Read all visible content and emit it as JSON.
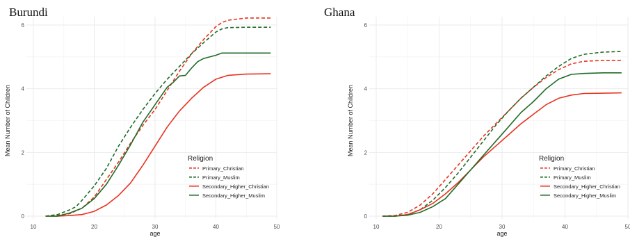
{
  "chart_data": [
    {
      "type": "line",
      "title": "Burundi",
      "xlabel": "age",
      "ylabel": "Mean Number of Children",
      "xlim": [
        10,
        50
      ],
      "ylim": [
        0,
        6
      ],
      "xticks": [
        10,
        20,
        30,
        40,
        50
      ],
      "yticks": [
        0,
        2,
        4,
        6
      ],
      "grid": true,
      "legend": {
        "title": "Religion",
        "placement": "bottom-right"
      },
      "series": [
        {
          "name": "Primary_Christian",
          "color": "#e8321f",
          "dash": "dashed",
          "x": [
            12,
            14,
            16,
            18,
            20,
            22,
            24,
            26,
            28,
            30,
            32,
            34,
            36,
            38,
            40,
            41,
            42,
            45,
            49
          ],
          "y": [
            0,
            0.02,
            0.08,
            0.25,
            0.6,
            1.15,
            1.7,
            2.3,
            2.85,
            3.35,
            3.95,
            4.55,
            5.1,
            5.55,
            5.95,
            6.08,
            6.15,
            6.22,
            6.22
          ]
        },
        {
          "name": "Primary_Muslim",
          "color": "#1e6b28",
          "dash": "dashed",
          "x": [
            12,
            14,
            16,
            17,
            18,
            20,
            22,
            24,
            25,
            26,
            28,
            30,
            32,
            34,
            36,
            38,
            40,
            41,
            42,
            45,
            49
          ],
          "y": [
            0,
            0.05,
            0.2,
            0.3,
            0.5,
            0.95,
            1.5,
            2.2,
            2.5,
            2.8,
            3.35,
            3.85,
            4.3,
            4.7,
            5.1,
            5.45,
            5.78,
            5.88,
            5.92,
            5.93,
            5.93
          ]
        },
        {
          "name": "Secondary_Higher_Christian",
          "color": "#e8321f",
          "dash": "solid",
          "x": [
            12,
            14,
            16,
            18,
            20,
            22,
            24,
            26,
            28,
            30,
            32,
            34,
            36,
            38,
            40,
            42,
            45,
            49
          ],
          "y": [
            0,
            0,
            0.02,
            0.05,
            0.15,
            0.35,
            0.65,
            1.05,
            1.6,
            2.2,
            2.8,
            3.3,
            3.7,
            4.05,
            4.3,
            4.42,
            4.46,
            4.47
          ]
        },
        {
          "name": "Secondary_Higher_Muslim",
          "color": "#1e6b28",
          "dash": "solid",
          "x": [
            12,
            14,
            16,
            18,
            20,
            22,
            24,
            26,
            28,
            30,
            32,
            33,
            34,
            35,
            36,
            37,
            38,
            40,
            41,
            42,
            45,
            49
          ],
          "y": [
            0,
            0,
            0.1,
            0.25,
            0.55,
            1.0,
            1.6,
            2.25,
            2.95,
            3.5,
            4.05,
            4.2,
            4.4,
            4.42,
            4.65,
            4.85,
            4.95,
            5.05,
            5.12,
            5.12,
            5.12,
            5.12
          ]
        }
      ]
    },
    {
      "type": "line",
      "title": "Ghana",
      "xlabel": "age",
      "ylabel": "Mean Number of Children",
      "xlim": [
        10,
        50
      ],
      "ylim": [
        0,
        6
      ],
      "xticks": [
        10,
        20,
        30,
        40,
        50
      ],
      "yticks": [
        0,
        2,
        4,
        6
      ],
      "grid": true,
      "legend": {
        "title": "Religion",
        "placement": "bottom-right"
      },
      "series": [
        {
          "name": "Primary_Christian",
          "color": "#e8321f",
          "dash": "dashed",
          "x": [
            11,
            13,
            15,
            17,
            19,
            21,
            23,
            25,
            27,
            29,
            31,
            33,
            35,
            37,
            39,
            41,
            43,
            46,
            49
          ],
          "y": [
            0,
            0.02,
            0.12,
            0.35,
            0.7,
            1.15,
            1.6,
            2.05,
            2.5,
            2.9,
            3.3,
            3.7,
            4.05,
            4.35,
            4.6,
            4.78,
            4.86,
            4.89,
            4.89
          ]
        },
        {
          "name": "Primary_Muslim",
          "color": "#1e6b28",
          "dash": "dashed",
          "x": [
            11,
            13,
            15,
            17,
            19,
            21,
            23,
            25,
            27,
            29,
            31,
            33,
            35,
            37,
            39,
            41,
            43,
            46,
            49
          ],
          "y": [
            0,
            0,
            0.05,
            0.2,
            0.5,
            0.9,
            1.35,
            1.85,
            2.35,
            2.85,
            3.3,
            3.7,
            4.05,
            4.4,
            4.7,
            4.95,
            5.08,
            5.15,
            5.17
          ]
        },
        {
          "name": "Secondary_Higher_Christian",
          "color": "#e8321f",
          "dash": "solid",
          "x": [
            11,
            13,
            15,
            17,
            19,
            21,
            23,
            25,
            27,
            29,
            31,
            33,
            35,
            37,
            39,
            41,
            43,
            46,
            49
          ],
          "y": [
            0,
            0,
            0.05,
            0.2,
            0.4,
            0.7,
            1.05,
            1.45,
            1.85,
            2.2,
            2.55,
            2.9,
            3.2,
            3.5,
            3.7,
            3.8,
            3.85,
            3.86,
            3.87
          ]
        },
        {
          "name": "Secondary_Higher_Muslim",
          "color": "#1e6b28",
          "dash": "solid",
          "x": [
            11,
            13,
            15,
            17,
            19,
            21,
            23,
            25,
            27,
            29,
            31,
            33,
            35,
            37,
            39,
            41,
            43,
            46,
            49
          ],
          "y": [
            0,
            0,
            0.03,
            0.12,
            0.3,
            0.55,
            1.0,
            1.45,
            1.9,
            2.35,
            2.8,
            3.25,
            3.6,
            4.0,
            4.3,
            4.45,
            4.48,
            4.5,
            4.5
          ]
        }
      ]
    }
  ]
}
